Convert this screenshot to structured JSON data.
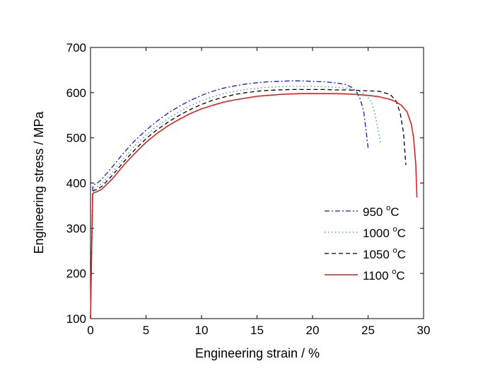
{
  "chart_data": {
    "type": "line",
    "xlabel": "Engineering strain / %",
    "ylabel": "Engineering  stress / MPa",
    "xlim": [
      0,
      30
    ],
    "ylim": [
      100,
      700
    ],
    "xticks": [
      0,
      5,
      10,
      15,
      20,
      25,
      30
    ],
    "yticks": [
      100,
      200,
      300,
      400,
      500,
      600,
      700
    ],
    "grid": false,
    "legend_position": "bottom-right",
    "series": [
      {
        "name": "950 °C",
        "label_main": "950 ",
        "label_sup": "o",
        "label_unit": "C",
        "color": "#1a1acc",
        "dash": "7,3,2,3",
        "x": [
          0,
          0.1,
          0.2,
          0.3,
          0.5,
          1,
          2,
          3,
          4,
          5,
          6,
          7,
          8,
          9,
          10,
          11,
          12,
          13,
          14,
          15,
          16,
          17,
          18,
          19,
          20,
          21,
          22,
          23,
          23.5,
          24,
          24.3,
          24.6,
          24.8,
          25.0
        ],
        "y": [
          100,
          250,
          390,
          397,
          398,
          408,
          437,
          467,
          494,
          517,
          537,
          555,
          570,
          583,
          594,
          603,
          610,
          615,
          619,
          622,
          624,
          625,
          626,
          626,
          625,
          624,
          622,
          618,
          612,
          600,
          585,
          560,
          520,
          478
        ]
      },
      {
        "name": "1000 °C",
        "label_main": "1000 ",
        "label_sup": "o",
        "label_unit": "C",
        "color": "#2e9c8c",
        "dash": "1.5,3.5",
        "x": [
          0,
          0.1,
          0.2,
          0.3,
          0.5,
          1,
          2,
          3,
          4,
          5,
          6,
          7,
          8,
          9,
          10,
          11,
          12,
          13,
          14,
          15,
          16,
          17,
          18,
          19,
          20,
          21,
          22,
          23,
          24,
          24.8,
          25.3,
          25.6,
          25.9,
          26.1
        ],
        "y": [
          100,
          250,
          385,
          389,
          390,
          398,
          425,
          455,
          483,
          506,
          526,
          543,
          558,
          571,
          582,
          591,
          598,
          603,
          607,
          610,
          612,
          613,
          614,
          614,
          614,
          613,
          612,
          610,
          605,
          595,
          580,
          555,
          520,
          488
        ]
      },
      {
        "name": "1050 °C",
        "label_main": "1050 ",
        "label_sup": "o",
        "label_unit": "C",
        "color": "#000000",
        "dash": "6,4",
        "x": [
          0,
          0.1,
          0.2,
          0.3,
          0.5,
          1,
          2,
          3,
          4,
          5,
          6,
          7,
          8,
          9,
          10,
          11,
          12,
          13,
          14,
          15,
          16,
          17,
          18,
          19,
          20,
          21,
          22,
          23,
          24,
          25,
          26,
          27,
          27.5,
          27.9,
          28.2,
          28.4
        ],
        "y": [
          100,
          250,
          380,
          384,
          385,
          392,
          418,
          447,
          474,
          498,
          518,
          535,
          550,
          563,
          574,
          583,
          590,
          596,
          600,
          603,
          605,
          606,
          607,
          607,
          607,
          607,
          606,
          606,
          605,
          604,
          603,
          596,
          582,
          555,
          510,
          440
        ]
      },
      {
        "name": "1100 °C",
        "label_main": "1100 ",
        "label_sup": "o",
        "label_unit": "C",
        "color": "#dd2222",
        "dash": "",
        "x": [
          0,
          0.1,
          0.2,
          0.3,
          0.5,
          1,
          2,
          3,
          4,
          5,
          6,
          7,
          8,
          9,
          10,
          11,
          12,
          13,
          14,
          15,
          16,
          17,
          18,
          19,
          20,
          21,
          22,
          23,
          24,
          25,
          26,
          27,
          27.5,
          28,
          28.5,
          28.9,
          29.1,
          29.3,
          29.4
        ],
        "y": [
          100,
          250,
          375,
          379,
          380,
          386,
          410,
          440,
          466,
          490,
          510,
          527,
          541,
          554,
          564,
          572,
          579,
          584,
          588,
          592,
          594,
          596,
          597,
          598,
          598,
          598,
          598,
          597,
          596,
          594,
          591,
          585,
          580,
          572,
          558,
          530,
          500,
          440,
          368
        ]
      }
    ]
  }
}
